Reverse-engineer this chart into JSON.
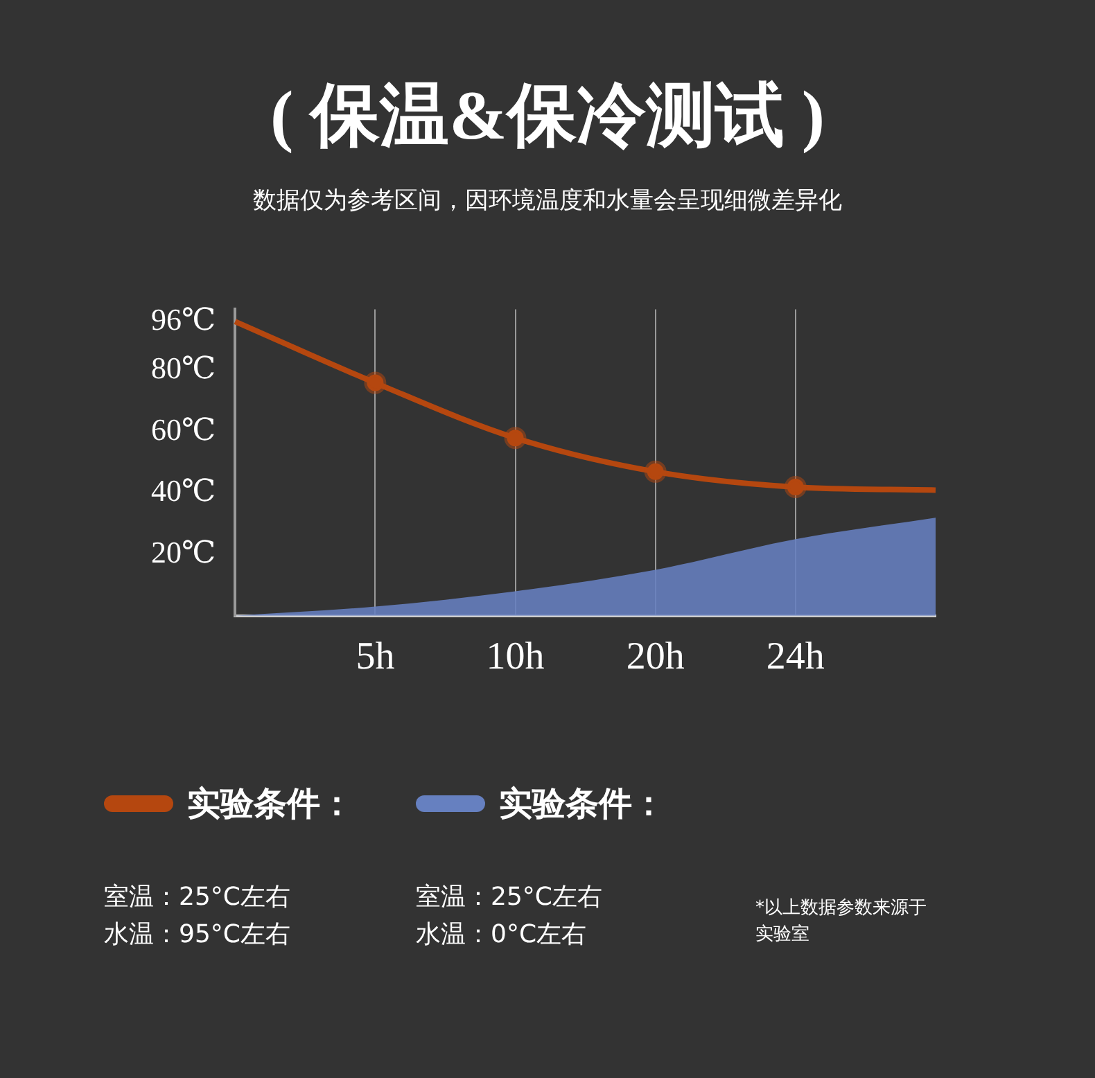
{
  "chart_data": {
    "type": "line",
    "title": "( 保温&保冷测试 )",
    "subtitle": "数据仅为参考区间，因环境温度和水量会呈现细微差异化",
    "categories": [
      null,
      "5h",
      "10h",
      "20h",
      "24h",
      null
    ],
    "series": [
      {
        "name": "实验条件：",
        "color": "#b5470f",
        "values": [
          96,
          76,
          58,
          47,
          42,
          41
        ],
        "marker": "circle"
      },
      {
        "name": "实验条件：",
        "type": "area",
        "color": "#6680c0",
        "values": [
          0,
          3,
          8,
          15,
          25,
          32
        ],
        "marker": "none"
      }
    ],
    "ylim": [
      0,
      100
    ],
    "yticks": [
      {
        "value": 20,
        "label": "20℃"
      },
      {
        "value": 40,
        "label": "40℃"
      },
      {
        "value": 60,
        "label": "60℃"
      },
      {
        "value": 80,
        "label": "80℃"
      },
      {
        "value": 96,
        "label": "96℃"
      }
    ],
    "grid": "x",
    "legend": "bottom",
    "annotations": [
      "室温：25°C左右",
      "水温：95°C左右",
      "室温：25°C左右",
      "水温：0°C左右",
      "*以上数据参数来源于实验室"
    ]
  }
}
